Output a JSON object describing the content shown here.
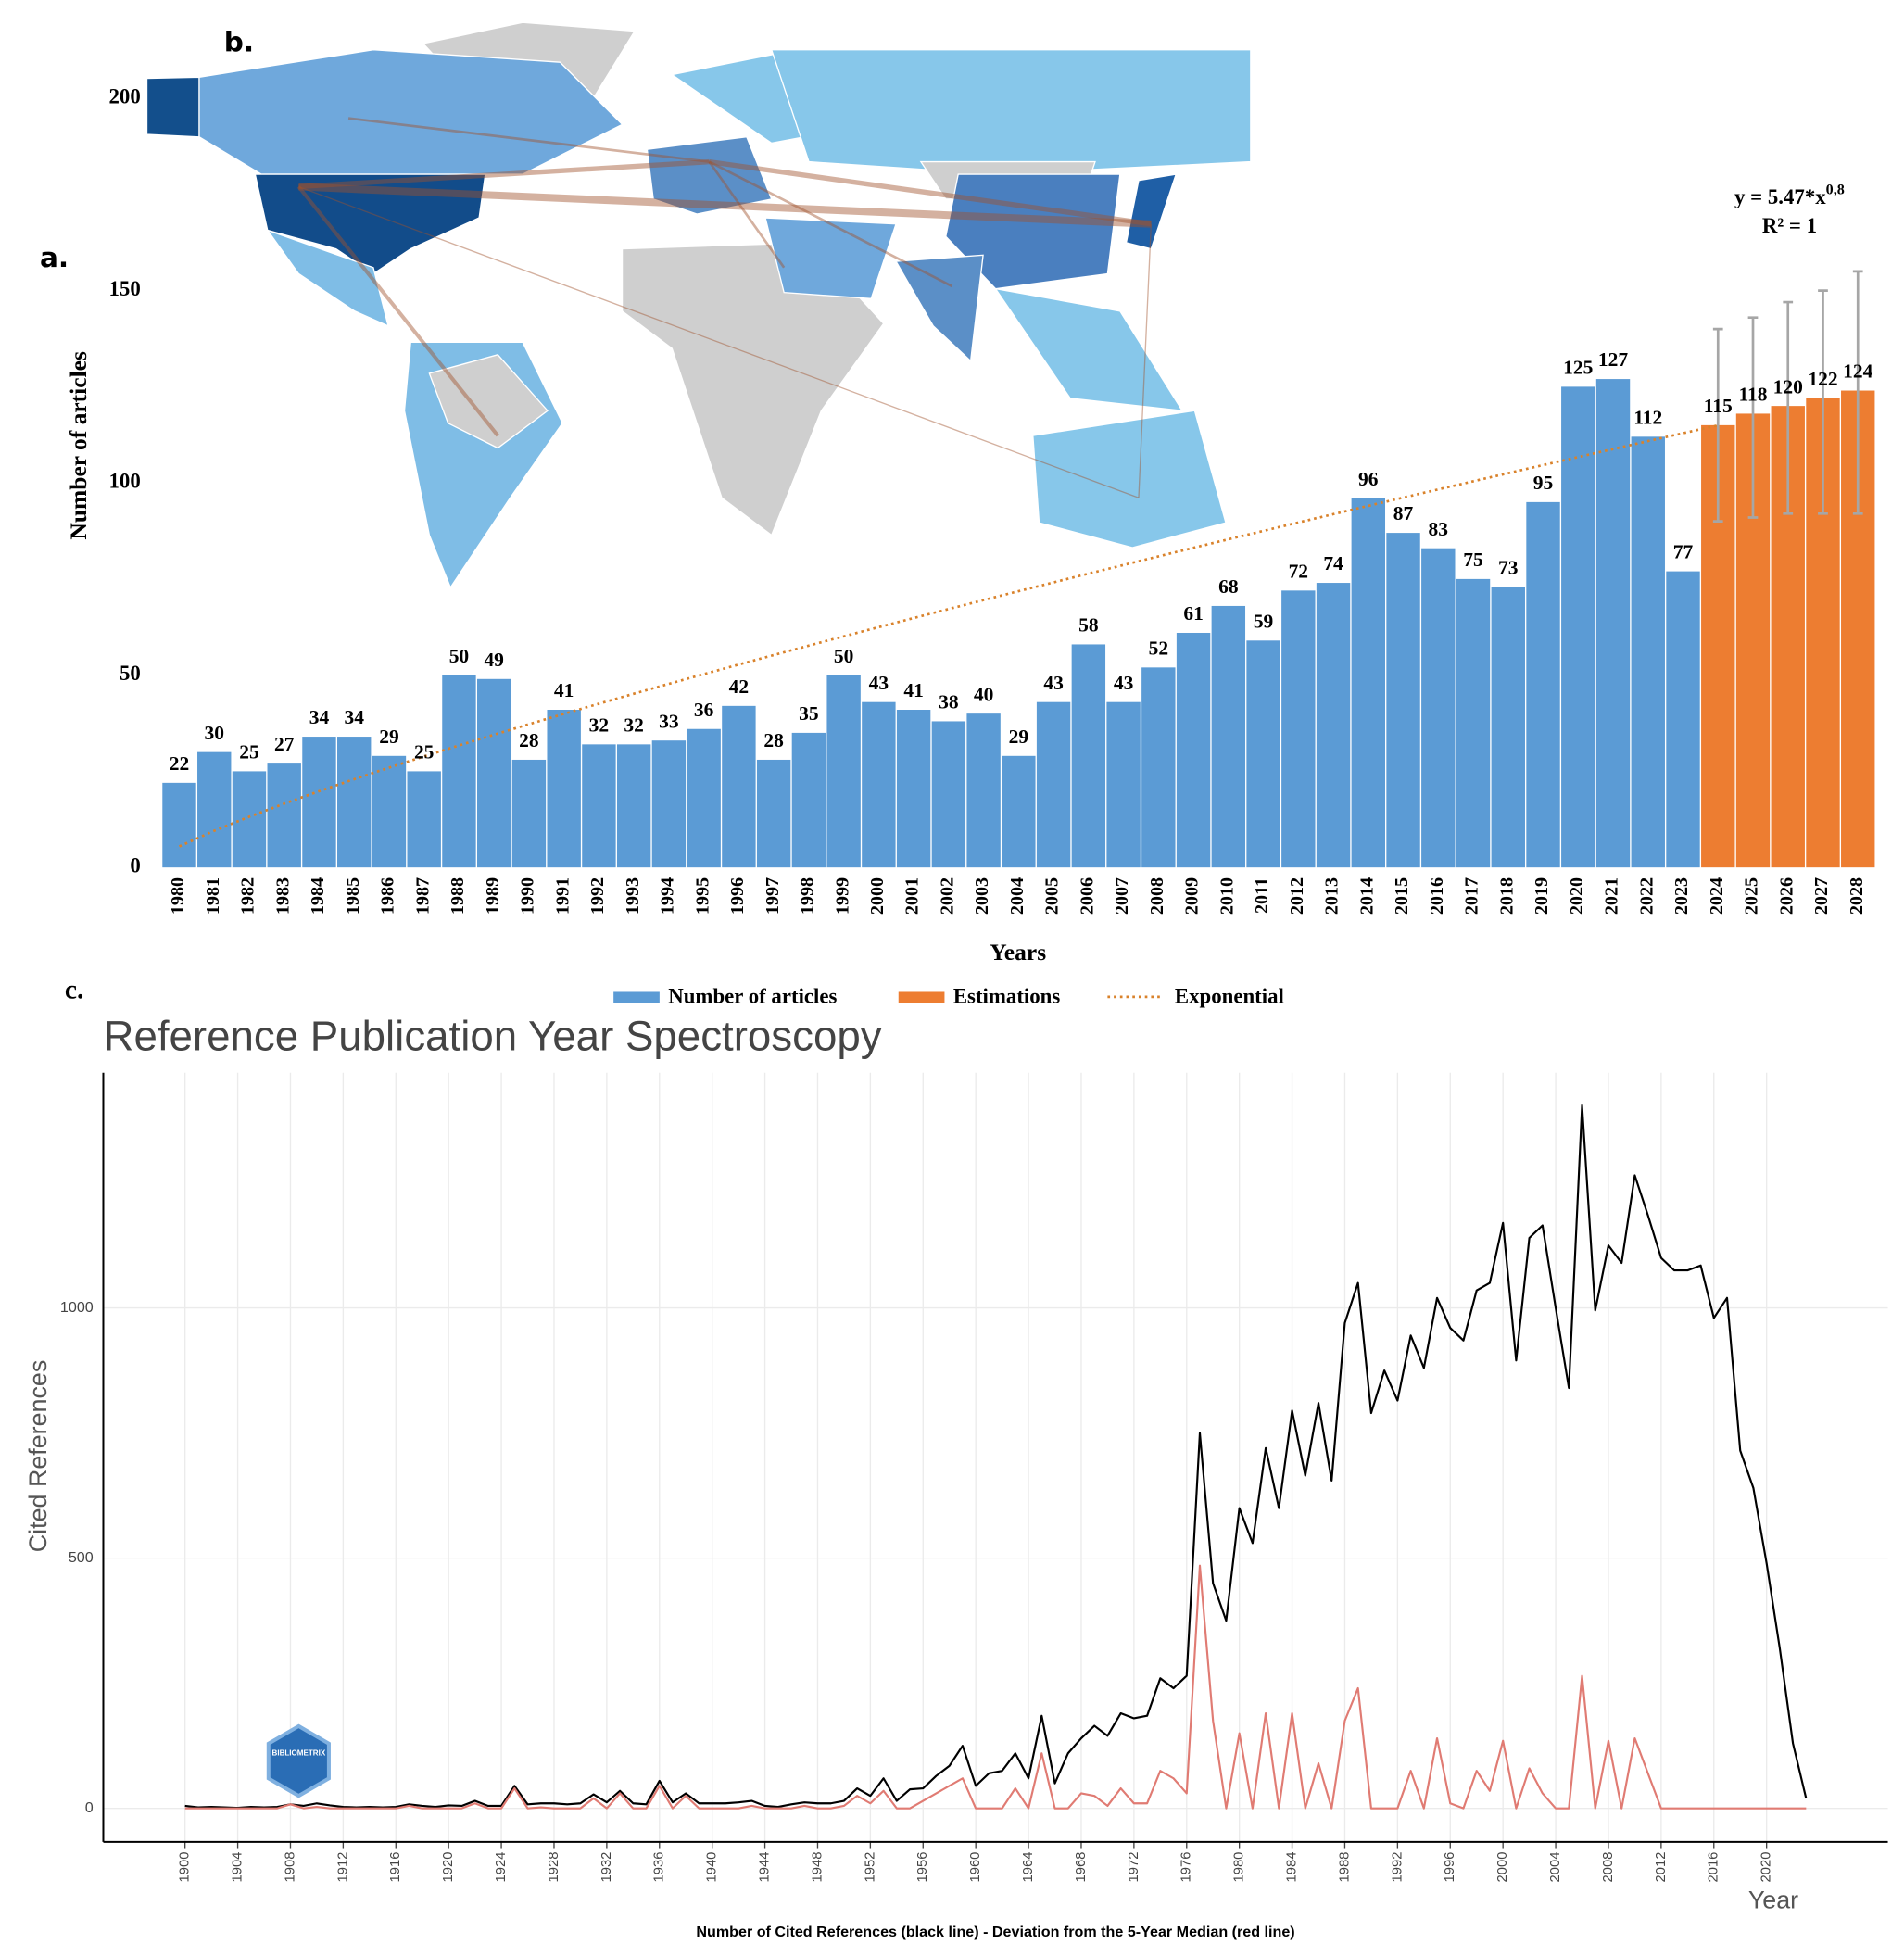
{
  "map": {
    "label": "b."
  },
  "chart_data": [
    {
      "type": "bar",
      "panel_label": "a.",
      "categories": [
        "1980",
        "1981",
        "1982",
        "1983",
        "1984",
        "1985",
        "1986",
        "1987",
        "1988",
        "1989",
        "1990",
        "1991",
        "1992",
        "1993",
        "1994",
        "1995",
        "1996",
        "1997",
        "1998",
        "1999",
        "2000",
        "2001",
        "2002",
        "2003",
        "2004",
        "2005",
        "2006",
        "2007",
        "2008",
        "2009",
        "2010",
        "2011",
        "2012",
        "2013",
        "2014",
        "2015",
        "2016",
        "2017",
        "2018",
        "2019",
        "2020",
        "2021",
        "2022",
        "2023",
        "2024",
        "2025",
        "2026",
        "2027",
        "2028"
      ],
      "series": [
        {
          "name": "Number of articles",
          "color": "#5b9bd5",
          "values": [
            22,
            30,
            25,
            27,
            34,
            34,
            29,
            25,
            50,
            49,
            28,
            41,
            32,
            32,
            33,
            36,
            42,
            28,
            35,
            50,
            43,
            41,
            38,
            40,
            29,
            43,
            58,
            43,
            52,
            61,
            68,
            59,
            72,
            74,
            96,
            87,
            83,
            75,
            73,
            95,
            125,
            127,
            112,
            77,
            null,
            null,
            null,
            null,
            null
          ]
        },
        {
          "name": "Estimations",
          "color": "#ed7d31",
          "values": [
            null,
            null,
            null,
            null,
            null,
            null,
            null,
            null,
            null,
            null,
            null,
            null,
            null,
            null,
            null,
            null,
            null,
            null,
            null,
            null,
            null,
            null,
            null,
            null,
            null,
            null,
            null,
            null,
            null,
            null,
            null,
            null,
            null,
            null,
            null,
            null,
            null,
            null,
            null,
            null,
            null,
            null,
            null,
            null,
            115,
            118,
            120,
            122,
            124
          ],
          "error_low": [
            null,
            null,
            null,
            null,
            null,
            null,
            null,
            null,
            null,
            null,
            null,
            null,
            null,
            null,
            null,
            null,
            null,
            null,
            null,
            null,
            null,
            null,
            null,
            null,
            null,
            null,
            null,
            null,
            null,
            null,
            null,
            null,
            null,
            null,
            null,
            null,
            null,
            null,
            null,
            null,
            null,
            null,
            null,
            null,
            90,
            91,
            92,
            92,
            92
          ],
          "error_high": [
            null,
            null,
            null,
            null,
            null,
            null,
            null,
            null,
            null,
            null,
            null,
            null,
            null,
            null,
            null,
            null,
            null,
            null,
            null,
            null,
            null,
            null,
            null,
            null,
            null,
            null,
            null,
            null,
            null,
            null,
            null,
            null,
            null,
            null,
            null,
            null,
            null,
            null,
            null,
            null,
            null,
            null,
            null,
            null,
            140,
            143,
            147,
            150,
            155
          ]
        }
      ],
      "error_color": "#a6a6a6",
      "trend": {
        "name": "Exponential",
        "color": "#d9822b",
        "coefficient": 5.47,
        "exponent": 0.8
      },
      "equation": "y = 5.47*x",
      "equation_exponent": "0,8",
      "r_squared": "R² = 1",
      "ylim": [
        0,
        200
      ],
      "yticks": [
        0,
        50,
        100,
        150,
        200
      ],
      "y_label": "Number of articles",
      "x_label": "Years"
    },
    {
      "type": "line",
      "panel_label": "c.",
      "title": "Reference Publication Year Spectroscopy",
      "y_label": "Cited References",
      "x_label": "Year",
      "caption": "Number of Cited References (black line) - Deviation from the 5-Year Median (red line)",
      "logo_text": "BIBLIOMETRIX",
      "x": [
        1900,
        1901,
        1902,
        1903,
        1904,
        1905,
        1906,
        1907,
        1908,
        1909,
        1910,
        1911,
        1912,
        1913,
        1914,
        1915,
        1916,
        1917,
        1918,
        1919,
        1920,
        1921,
        1922,
        1923,
        1924,
        1925,
        1926,
        1927,
        1928,
        1929,
        1930,
        1931,
        1932,
        1933,
        1934,
        1935,
        1936,
        1937,
        1938,
        1939,
        1940,
        1941,
        1942,
        1943,
        1944,
        1945,
        1946,
        1947,
        1948,
        1949,
        1950,
        1951,
        1952,
        1953,
        1954,
        1955,
        1956,
        1957,
        1958,
        1959,
        1960,
        1961,
        1962,
        1963,
        1964,
        1965,
        1966,
        1967,
        1968,
        1969,
        1970,
        1971,
        1972,
        1973,
        1974,
        1975,
        1976,
        1977,
        1978,
        1979,
        1980,
        1981,
        1982,
        1983,
        1984,
        1985,
        1986,
        1987,
        1988,
        1989,
        1990,
        1991,
        1992,
        1993,
        1994,
        1995,
        1996,
        1997,
        1998,
        1999,
        2000,
        2001,
        2002,
        2003,
        2004,
        2005,
        2006,
        2007,
        2008,
        2009,
        2010,
        2011,
        2012,
        2013,
        2014,
        2015,
        2016,
        2017,
        2018,
        2019,
        2020,
        2021,
        2022,
        2023
      ],
      "series": [
        {
          "color": "#000000",
          "values": [
            5,
            2,
            3,
            2,
            1,
            3,
            2,
            3,
            8,
            5,
            10,
            6,
            3,
            2,
            3,
            2,
            3,
            8,
            5,
            3,
            6,
            5,
            15,
            5,
            5,
            45,
            8,
            10,
            10,
            8,
            10,
            28,
            12,
            35,
            10,
            8,
            55,
            12,
            30,
            10,
            10,
            10,
            12,
            15,
            5,
            3,
            8,
            12,
            10,
            10,
            15,
            40,
            25,
            60,
            15,
            38,
            40,
            65,
            85,
            125,
            45,
            70,
            75,
            110,
            60,
            185,
            50,
            110,
            140,
            165,
            145,
            190,
            180,
            185,
            260,
            240,
            265,
            750,
            450,
            375,
            600,
            530,
            720,
            600,
            795,
            665,
            810,
            655,
            970,
            1050,
            790,
            875,
            815,
            945,
            880,
            1020,
            960,
            935,
            1035,
            1050,
            1170,
            895,
            1140,
            1165,
            1000,
            840,
            1405,
            995,
            1125,
            1090,
            1265,
            1185,
            1100,
            1075,
            1075,
            1085,
            980,
            1020,
            715,
            640,
            490,
            320,
            130,
            20
          ]
        },
        {
          "color": "#e07b73",
          "values": [
            0,
            0,
            0,
            0,
            0,
            0,
            0,
            0,
            8,
            0,
            3,
            0,
            0,
            0,
            0,
            0,
            0,
            5,
            0,
            0,
            0,
            0,
            10,
            0,
            0,
            40,
            0,
            2,
            0,
            0,
            0,
            20,
            0,
            30,
            0,
            0,
            45,
            0,
            25,
            0,
            0,
            0,
            0,
            5,
            0,
            0,
            0,
            5,
            0,
            0,
            5,
            25,
            10,
            35,
            0,
            0,
            15,
            30,
            45,
            60,
            0,
            0,
            0,
            40,
            0,
            110,
            0,
            0,
            30,
            25,
            5,
            40,
            10,
            10,
            75,
            60,
            30,
            485,
            175,
            0,
            150,
            0,
            190,
            0,
            190,
            0,
            90,
            0,
            175,
            240,
            0,
            0,
            0,
            75,
            0,
            140,
            10,
            0,
            75,
            35,
            135,
            0,
            80,
            30,
            0,
            0,
            265,
            0,
            135,
            0,
            140,
            70,
            0,
            0,
            0,
            0,
            0,
            0,
            0,
            0,
            0,
            0,
            0,
            0
          ]
        }
      ],
      "xlim": [
        1893.8,
        2029.2
      ],
      "ylim": [
        -67,
        1470
      ],
      "xticks": [
        1900,
        1904,
        1908,
        1912,
        1916,
        1920,
        1924,
        1928,
        1932,
        1936,
        1940,
        1944,
        1948,
        1952,
        1956,
        1960,
        1964,
        1968,
        1972,
        1976,
        1980,
        1984,
        1988,
        1992,
        1996,
        2000,
        2004,
        2008,
        2012,
        2016,
        2020
      ],
      "yticks": [
        0,
        500,
        1000
      ],
      "grid": true
    }
  ]
}
